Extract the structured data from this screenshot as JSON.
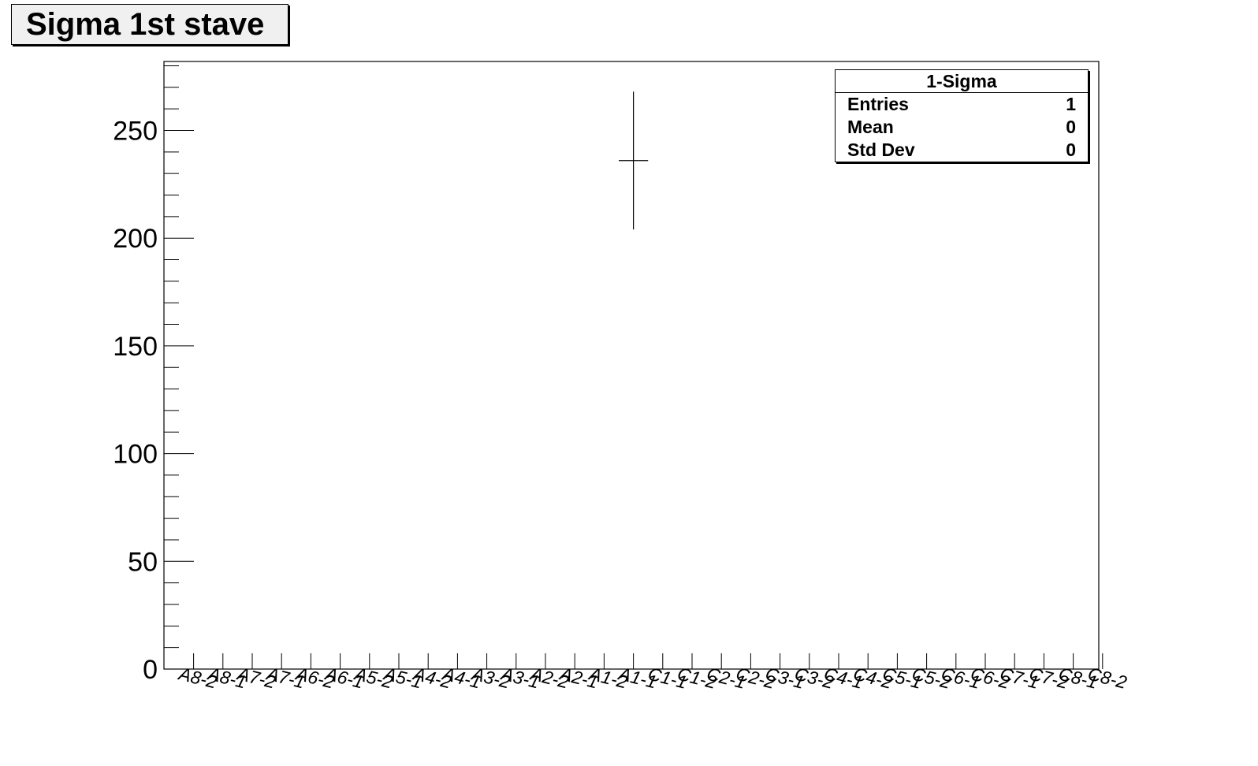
{
  "title": "Sigma 1st stave",
  "stats": {
    "name": "1-Sigma",
    "rows": [
      {
        "label": "Entries",
        "value": "1"
      },
      {
        "label": "Mean",
        "value": "0"
      },
      {
        "label": "Std Dev",
        "value": "0"
      }
    ]
  },
  "chart_data": {
    "type": "scatter",
    "title": "Sigma 1st stave",
    "xlabel": "",
    "ylabel": "",
    "categories": [
      "A8-2",
      "A8-1",
      "A7-2",
      "A7-1",
      "A6-2",
      "A6-1",
      "A5-2",
      "A5-1",
      "A4-2",
      "A4-1",
      "A3-2",
      "A3-1",
      "A2-2",
      "A2-1",
      "A1-2",
      "A1-1",
      "C1-1",
      "C1-2",
      "C2-1",
      "C2-2",
      "C3-1",
      "C3-2",
      "C4-1",
      "C4-2",
      "C5-1",
      "C5-2",
      "C6-1",
      "C6-2",
      "C7-1",
      "C7-2",
      "C8-1",
      "C8-2"
    ],
    "y_ticks": [
      0,
      50,
      100,
      150,
      200,
      250
    ],
    "ylim": [
      0,
      282
    ],
    "grid": false,
    "legend": "top-right",
    "series": [
      {
        "points": [
          {
            "category": "A1-1",
            "y": 236,
            "y_err": 32
          }
        ]
      }
    ]
  }
}
